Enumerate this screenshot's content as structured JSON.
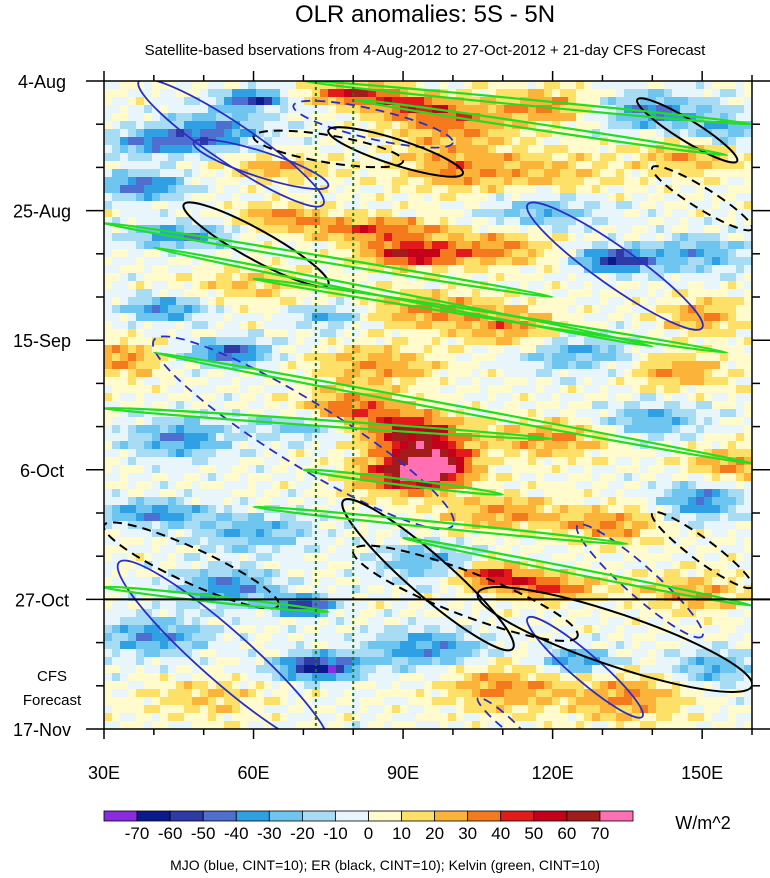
{
  "chart_data": {
    "type": "heatmap",
    "title": "OLR anomalies: 5S - 5N",
    "subtitle": "Satellite-based bservations from 4-Aug-2012 to 27-Oct-2012 + 21-day CFS Forecast",
    "x_axis": {
      "range": [
        30,
        160
      ],
      "ticks": [
        {
          "value": 30,
          "label": "30E"
        },
        {
          "value": 60,
          "label": "60E"
        },
        {
          "value": 90,
          "label": "90E"
        },
        {
          "value": 120,
          "label": "120E"
        },
        {
          "value": 150,
          "label": "150E"
        }
      ]
    },
    "y_axis": {
      "range_days": [
        0,
        105
      ],
      "ticks": [
        {
          "day": 0,
          "label": "4-Aug"
        },
        {
          "day": 21,
          "label": "25-Aug"
        },
        {
          "day": 42,
          "label": "15-Sep"
        },
        {
          "day": 63,
          "label": "6-Oct"
        },
        {
          "day": 84,
          "label": "27-Oct"
        },
        {
          "day": 105,
          "label": "17-Nov"
        }
      ],
      "forecast_start_day": 84,
      "forecast_label_line1": "CFS",
      "forecast_label_line2": "Forecast"
    },
    "reference_lines_lon": [
      72.5,
      80
    ],
    "colorbar": {
      "levels": [
        "-70",
        "-60",
        "-50",
        "-40",
        "-30",
        "-20",
        "-10",
        "0",
        "10",
        "20",
        "30",
        "40",
        "50",
        "60",
        "70"
      ],
      "colors": [
        "#8a2be2",
        "#0a1a8c",
        "#2d3aa8",
        "#4e6fd0",
        "#2fa0e4",
        "#6ec6f0",
        "#a8dcf4",
        "#e8f6fb",
        "#fffbcc",
        "#fde068",
        "#fbb33a",
        "#f57a1e",
        "#e31a1c",
        "#c4001a",
        "#a31c1c",
        "#ff6fb4"
      ],
      "units": "W/m^2"
    },
    "anomaly_blobs": [
      {
        "lon": 52,
        "day": 8,
        "v": -40,
        "rl": 10,
        "rd": 3
      },
      {
        "lon": 60,
        "day": 3,
        "v": -60,
        "rl": 6,
        "rd": 1.5
      },
      {
        "lon": 80,
        "day": 2,
        "v": 50,
        "rl": 9,
        "rd": 1.5
      },
      {
        "lon": 92,
        "day": 4,
        "v": 40,
        "rl": 10,
        "rd": 2
      },
      {
        "lon": 100,
        "day": 7,
        "v": 30,
        "rl": 12,
        "rd": 3
      },
      {
        "lon": 118,
        "day": 4,
        "v": 30,
        "rl": 10,
        "rd": 3
      },
      {
        "lon": 140,
        "day": 5,
        "v": -40,
        "rl": 10,
        "rd": 3
      },
      {
        "lon": 155,
        "day": 8,
        "v": -30,
        "rl": 8,
        "rd": 3
      },
      {
        "lon": 40,
        "day": 10,
        "v": -40,
        "rl": 10,
        "rd": 2
      },
      {
        "lon": 38,
        "day": 17,
        "v": -50,
        "rl": 8,
        "rd": 2
      },
      {
        "lon": 65,
        "day": 14,
        "v": 30,
        "rl": 10,
        "rd": 2
      },
      {
        "lon": 100,
        "day": 14,
        "v": 30,
        "rl": 12,
        "rd": 4
      },
      {
        "lon": 120,
        "day": 15,
        "v": 20,
        "rl": 14,
        "rd": 4
      },
      {
        "lon": 148,
        "day": 12,
        "v": 30,
        "rl": 10,
        "rd": 3
      },
      {
        "lon": 66,
        "day": 22,
        "v": 30,
        "rl": 10,
        "rd": 2
      },
      {
        "lon": 85,
        "day": 24,
        "v": 40,
        "rl": 14,
        "rd": 2
      },
      {
        "lon": 92,
        "day": 28,
        "v": 60,
        "rl": 10,
        "rd": 2
      },
      {
        "lon": 110,
        "day": 27,
        "v": 30,
        "rl": 10,
        "rd": 3
      },
      {
        "lon": 133,
        "day": 29,
        "v": -60,
        "rl": 8,
        "rd": 2
      },
      {
        "lon": 150,
        "day": 28,
        "v": -30,
        "rl": 10,
        "rd": 3
      },
      {
        "lon": 45,
        "day": 25,
        "v": -40,
        "rl": 10,
        "rd": 2
      },
      {
        "lon": 118,
        "day": 21,
        "v": -30,
        "rl": 12,
        "rd": 3
      },
      {
        "lon": 60,
        "day": 33,
        "v": 20,
        "rl": 12,
        "rd": 3
      },
      {
        "lon": 75,
        "day": 38,
        "v": -30,
        "rl": 8,
        "rd": 2
      },
      {
        "lon": 95,
        "day": 37,
        "v": 30,
        "rl": 14,
        "rd": 3
      },
      {
        "lon": 112,
        "day": 40,
        "v": 30,
        "rl": 10,
        "rd": 3
      },
      {
        "lon": 150,
        "day": 38,
        "v": 30,
        "rl": 8,
        "rd": 3
      },
      {
        "lon": 42,
        "day": 37,
        "v": -40,
        "rl": 8,
        "rd": 2
      },
      {
        "lon": 34,
        "day": 45,
        "v": 30,
        "rl": 8,
        "rd": 3
      },
      {
        "lon": 55,
        "day": 44,
        "v": -50,
        "rl": 8,
        "rd": 2
      },
      {
        "lon": 85,
        "day": 46,
        "v": 30,
        "rl": 12,
        "rd": 3
      },
      {
        "lon": 125,
        "day": 44,
        "v": -30,
        "rl": 12,
        "rd": 3
      },
      {
        "lon": 145,
        "day": 47,
        "v": 30,
        "rl": 10,
        "rd": 3
      },
      {
        "lon": 80,
        "day": 53,
        "v": 40,
        "rl": 10,
        "rd": 3
      },
      {
        "lon": 92,
        "day": 57,
        "v": 60,
        "rl": 10,
        "rd": 3
      },
      {
        "lon": 96,
        "day": 62,
        "v": 70,
        "rl": 8,
        "rd": 3
      },
      {
        "lon": 90,
        "day": 64,
        "v": 50,
        "rl": 10,
        "rd": 3
      },
      {
        "lon": 70,
        "day": 56,
        "v": -30,
        "rl": 10,
        "rd": 2
      },
      {
        "lon": 45,
        "day": 58,
        "v": -40,
        "rl": 10,
        "rd": 3
      },
      {
        "lon": 120,
        "day": 58,
        "v": 30,
        "rl": 12,
        "rd": 3
      },
      {
        "lon": 140,
        "day": 55,
        "v": -30,
        "rl": 10,
        "rd": 3
      },
      {
        "lon": 155,
        "day": 62,
        "v": 30,
        "rl": 8,
        "rd": 3
      },
      {
        "lon": 40,
        "day": 70,
        "v": -40,
        "rl": 10,
        "rd": 2
      },
      {
        "lon": 60,
        "day": 73,
        "v": -30,
        "rl": 12,
        "rd": 3
      },
      {
        "lon": 110,
        "day": 70,
        "v": 30,
        "rl": 12,
        "rd": 3
      },
      {
        "lon": 132,
        "day": 72,
        "v": 30,
        "rl": 10,
        "rd": 3
      },
      {
        "lon": 150,
        "day": 68,
        "v": -40,
        "rl": 8,
        "rd": 3
      },
      {
        "lon": 70,
        "day": 85,
        "v": -60,
        "rl": 6,
        "rd": 1.5
      },
      {
        "lon": 55,
        "day": 82,
        "v": -40,
        "rl": 10,
        "rd": 3
      },
      {
        "lon": 108,
        "day": 80,
        "v": 50,
        "rl": 8,
        "rd": 2
      },
      {
        "lon": 120,
        "day": 82,
        "v": 40,
        "rl": 10,
        "rd": 2
      },
      {
        "lon": 148,
        "day": 83,
        "v": 30,
        "rl": 10,
        "rd": 3
      },
      {
        "lon": 95,
        "day": 78,
        "v": -30,
        "rl": 10,
        "rd": 3
      },
      {
        "lon": 40,
        "day": 90,
        "v": -40,
        "rl": 10,
        "rd": 3
      },
      {
        "lon": 73,
        "day": 95,
        "v": -70,
        "rl": 8,
        "rd": 2
      },
      {
        "lon": 95,
        "day": 92,
        "v": -40,
        "rl": 12,
        "rd": 3
      },
      {
        "lon": 110,
        "day": 98,
        "v": 30,
        "rl": 12,
        "rd": 4
      },
      {
        "lon": 125,
        "day": 94,
        "v": -40,
        "rl": 8,
        "rd": 2
      },
      {
        "lon": 135,
        "day": 100,
        "v": 30,
        "rl": 12,
        "rd": 4
      },
      {
        "lon": 152,
        "day": 95,
        "v": -30,
        "rl": 8,
        "rd": 3
      },
      {
        "lon": 50,
        "day": 100,
        "v": 20,
        "rl": 12,
        "rd": 3
      }
    ],
    "contours": {
      "legend": "MJO (blue, CINT=10); ER (black, CINT=10); Kelvin (green, CINT=10)",
      "mjo": [
        {
          "lon0": 37,
          "day0": 0,
          "lon1": 74,
          "day1": 20,
          "neg": false
        },
        {
          "lon0": 48,
          "day0": 10,
          "lon1": 75,
          "day1": 17,
          "neg": false
        },
        {
          "lon0": 68,
          "day0": 4,
          "lon1": 100,
          "day1": 10,
          "neg": true
        },
        {
          "lon0": 115,
          "day0": 20,
          "lon1": 150,
          "day1": 40,
          "neg": false
        },
        {
          "lon0": 40,
          "day0": 42,
          "lon1": 100,
          "day1": 72,
          "neg": true
        },
        {
          "lon0": 33,
          "day0": 78,
          "lon1": 75,
          "day1": 108,
          "neg": false
        },
        {
          "lon0": 125,
          "day0": 72,
          "lon1": 150,
          "day1": 90,
          "neg": true
        },
        {
          "lon0": 115,
          "day0": 87,
          "lon1": 138,
          "day1": 103,
          "neg": false
        },
        {
          "lon0": 105,
          "day0": 100,
          "lon1": 115,
          "day1": 107,
          "neg": true
        }
      ],
      "er": [
        {
          "lon0": 46,
          "day0": 20,
          "lon1": 75,
          "day1": 33,
          "neg": false
        },
        {
          "lon0": 75,
          "day0": 8,
          "lon1": 102,
          "day1": 15,
          "neg": false
        },
        {
          "lon0": 60,
          "day0": 9,
          "lon1": 90,
          "day1": 13,
          "neg": true
        },
        {
          "lon0": 137,
          "day0": 3,
          "lon1": 157,
          "day1": 13,
          "neg": false
        },
        {
          "lon0": 140,
          "day0": 14,
          "lon1": 160,
          "day1": 24,
          "neg": true
        },
        {
          "lon0": 30,
          "day0": 72,
          "lon1": 65,
          "day1": 85,
          "neg": true
        },
        {
          "lon0": 78,
          "day0": 68,
          "lon1": 112,
          "day1": 92,
          "neg": false
        },
        {
          "lon0": 80,
          "day0": 76,
          "lon1": 125,
          "day1": 90,
          "neg": true
        },
        {
          "lon0": 105,
          "day0": 83,
          "lon1": 160,
          "day1": 98,
          "neg": false
        },
        {
          "lon0": 140,
          "day0": 70,
          "lon1": 160,
          "day1": 82,
          "neg": true
        }
      ],
      "kelvin": [
        {
          "lon0": 70,
          "day0": 0,
          "lon1": 160,
          "day1": 7
        },
        {
          "lon0": 80,
          "day0": 3,
          "lon1": 155,
          "day1": 12
        },
        {
          "lon0": 30,
          "day0": 23,
          "lon1": 120,
          "day1": 35
        },
        {
          "lon0": 40,
          "day0": 27,
          "lon1": 140,
          "day1": 43
        },
        {
          "lon0": 60,
          "day0": 32,
          "lon1": 155,
          "day1": 44
        },
        {
          "lon0": 40,
          "day0": 44,
          "lon1": 160,
          "day1": 62
        },
        {
          "lon0": 30,
          "day0": 53,
          "lon1": 120,
          "day1": 58
        },
        {
          "lon0": 70,
          "day0": 63,
          "lon1": 110,
          "day1": 67
        },
        {
          "lon0": 60,
          "day0": 69,
          "lon1": 135,
          "day1": 75
        },
        {
          "lon0": 30,
          "day0": 82,
          "lon1": 75,
          "day1": 86
        },
        {
          "lon0": 90,
          "day0": 74,
          "lon1": 160,
          "day1": 85
        }
      ]
    }
  }
}
